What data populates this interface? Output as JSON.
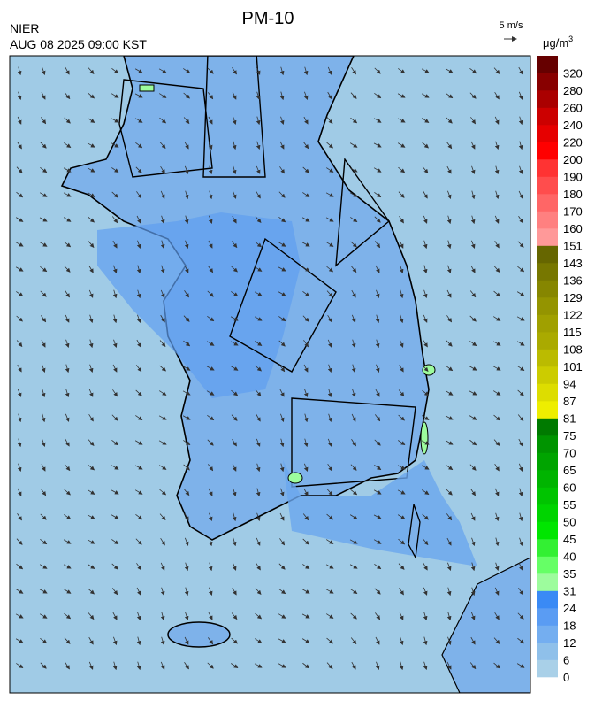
{
  "header": {
    "title": "PM-10",
    "agency": "NIER",
    "datetime": "AUG 08 2025 09:00 KST",
    "wind_scale": "5 m/s"
  },
  "colorbar": {
    "unit": {
      "base": "μg/m",
      "sup": "3"
    },
    "levels": [
      0,
      6,
      12,
      18,
      24,
      31,
      35,
      40,
      45,
      50,
      55,
      60,
      65,
      70,
      75,
      81,
      87,
      94,
      101,
      108,
      115,
      122,
      129,
      136,
      143,
      151,
      160,
      170,
      180,
      190,
      200,
      220,
      240,
      260,
      280,
      320
    ],
    "colors": [
      "#a9d0e8",
      "#8fc0ea",
      "#74aef0",
      "#5a9cf3",
      "#3a8af5",
      "#9dfc9d",
      "#66ff66",
      "#33f033",
      "#00e600",
      "#00d400",
      "#00c400",
      "#00b400",
      "#00a400",
      "#009400",
      "#007a00",
      "#eeee00",
      "#dddd00",
      "#cccc00",
      "#bbbb00",
      "#aaaa00",
      "#a0a000",
      "#949400",
      "#868600",
      "#777700",
      "#666600",
      "#ff9999",
      "#ff8080",
      "#ff6666",
      "#ff4d4d",
      "#ff3333",
      "#ff0000",
      "#e60000",
      "#cc0000",
      "#aa0000",
      "#880000",
      "#660000"
    ]
  }
}
